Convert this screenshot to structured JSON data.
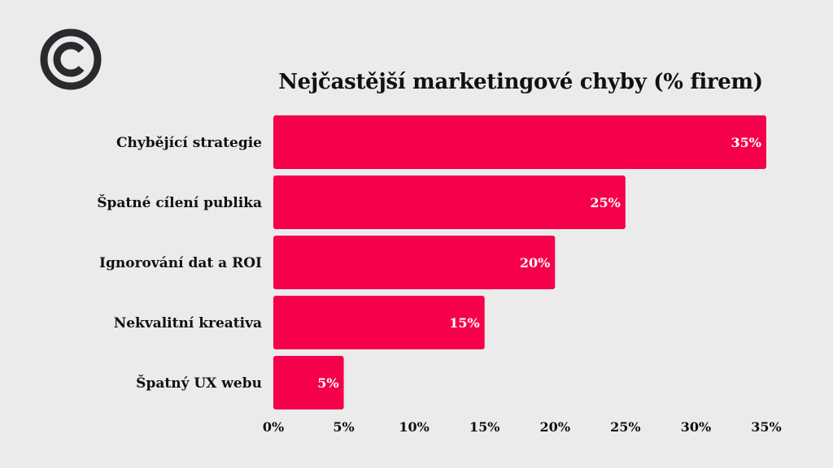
{
  "logo": {
    "icon": "copyright-icon",
    "color": "#2a2a2e"
  },
  "colors": {
    "background": "#ebebeb",
    "bar": "#f5004b",
    "text": "#111111",
    "value_text": "#ffffff"
  },
  "chart_data": {
    "type": "bar",
    "orientation": "horizontal",
    "title": "Nejčastější marketingové chyby (% firem)",
    "categories": [
      "Chybějící strategie",
      "Špatné cílení publika",
      "Ignorování dat a ROI",
      "Nekvalitní kreativa",
      "Špatný UX webu"
    ],
    "values": [
      35,
      25,
      20,
      15,
      5
    ],
    "value_labels": [
      "35%",
      "25%",
      "20%",
      "15%",
      "5%"
    ],
    "xlim": [
      0,
      35
    ],
    "x_ticks": [
      0,
      5,
      10,
      15,
      20,
      25,
      30,
      35
    ],
    "x_tick_labels": [
      "0%",
      "5%",
      "10%",
      "15%",
      "20%",
      "25%",
      "30%",
      "35%"
    ],
    "xlabel": "",
    "ylabel": "",
    "grid": false,
    "legend": "none"
  }
}
